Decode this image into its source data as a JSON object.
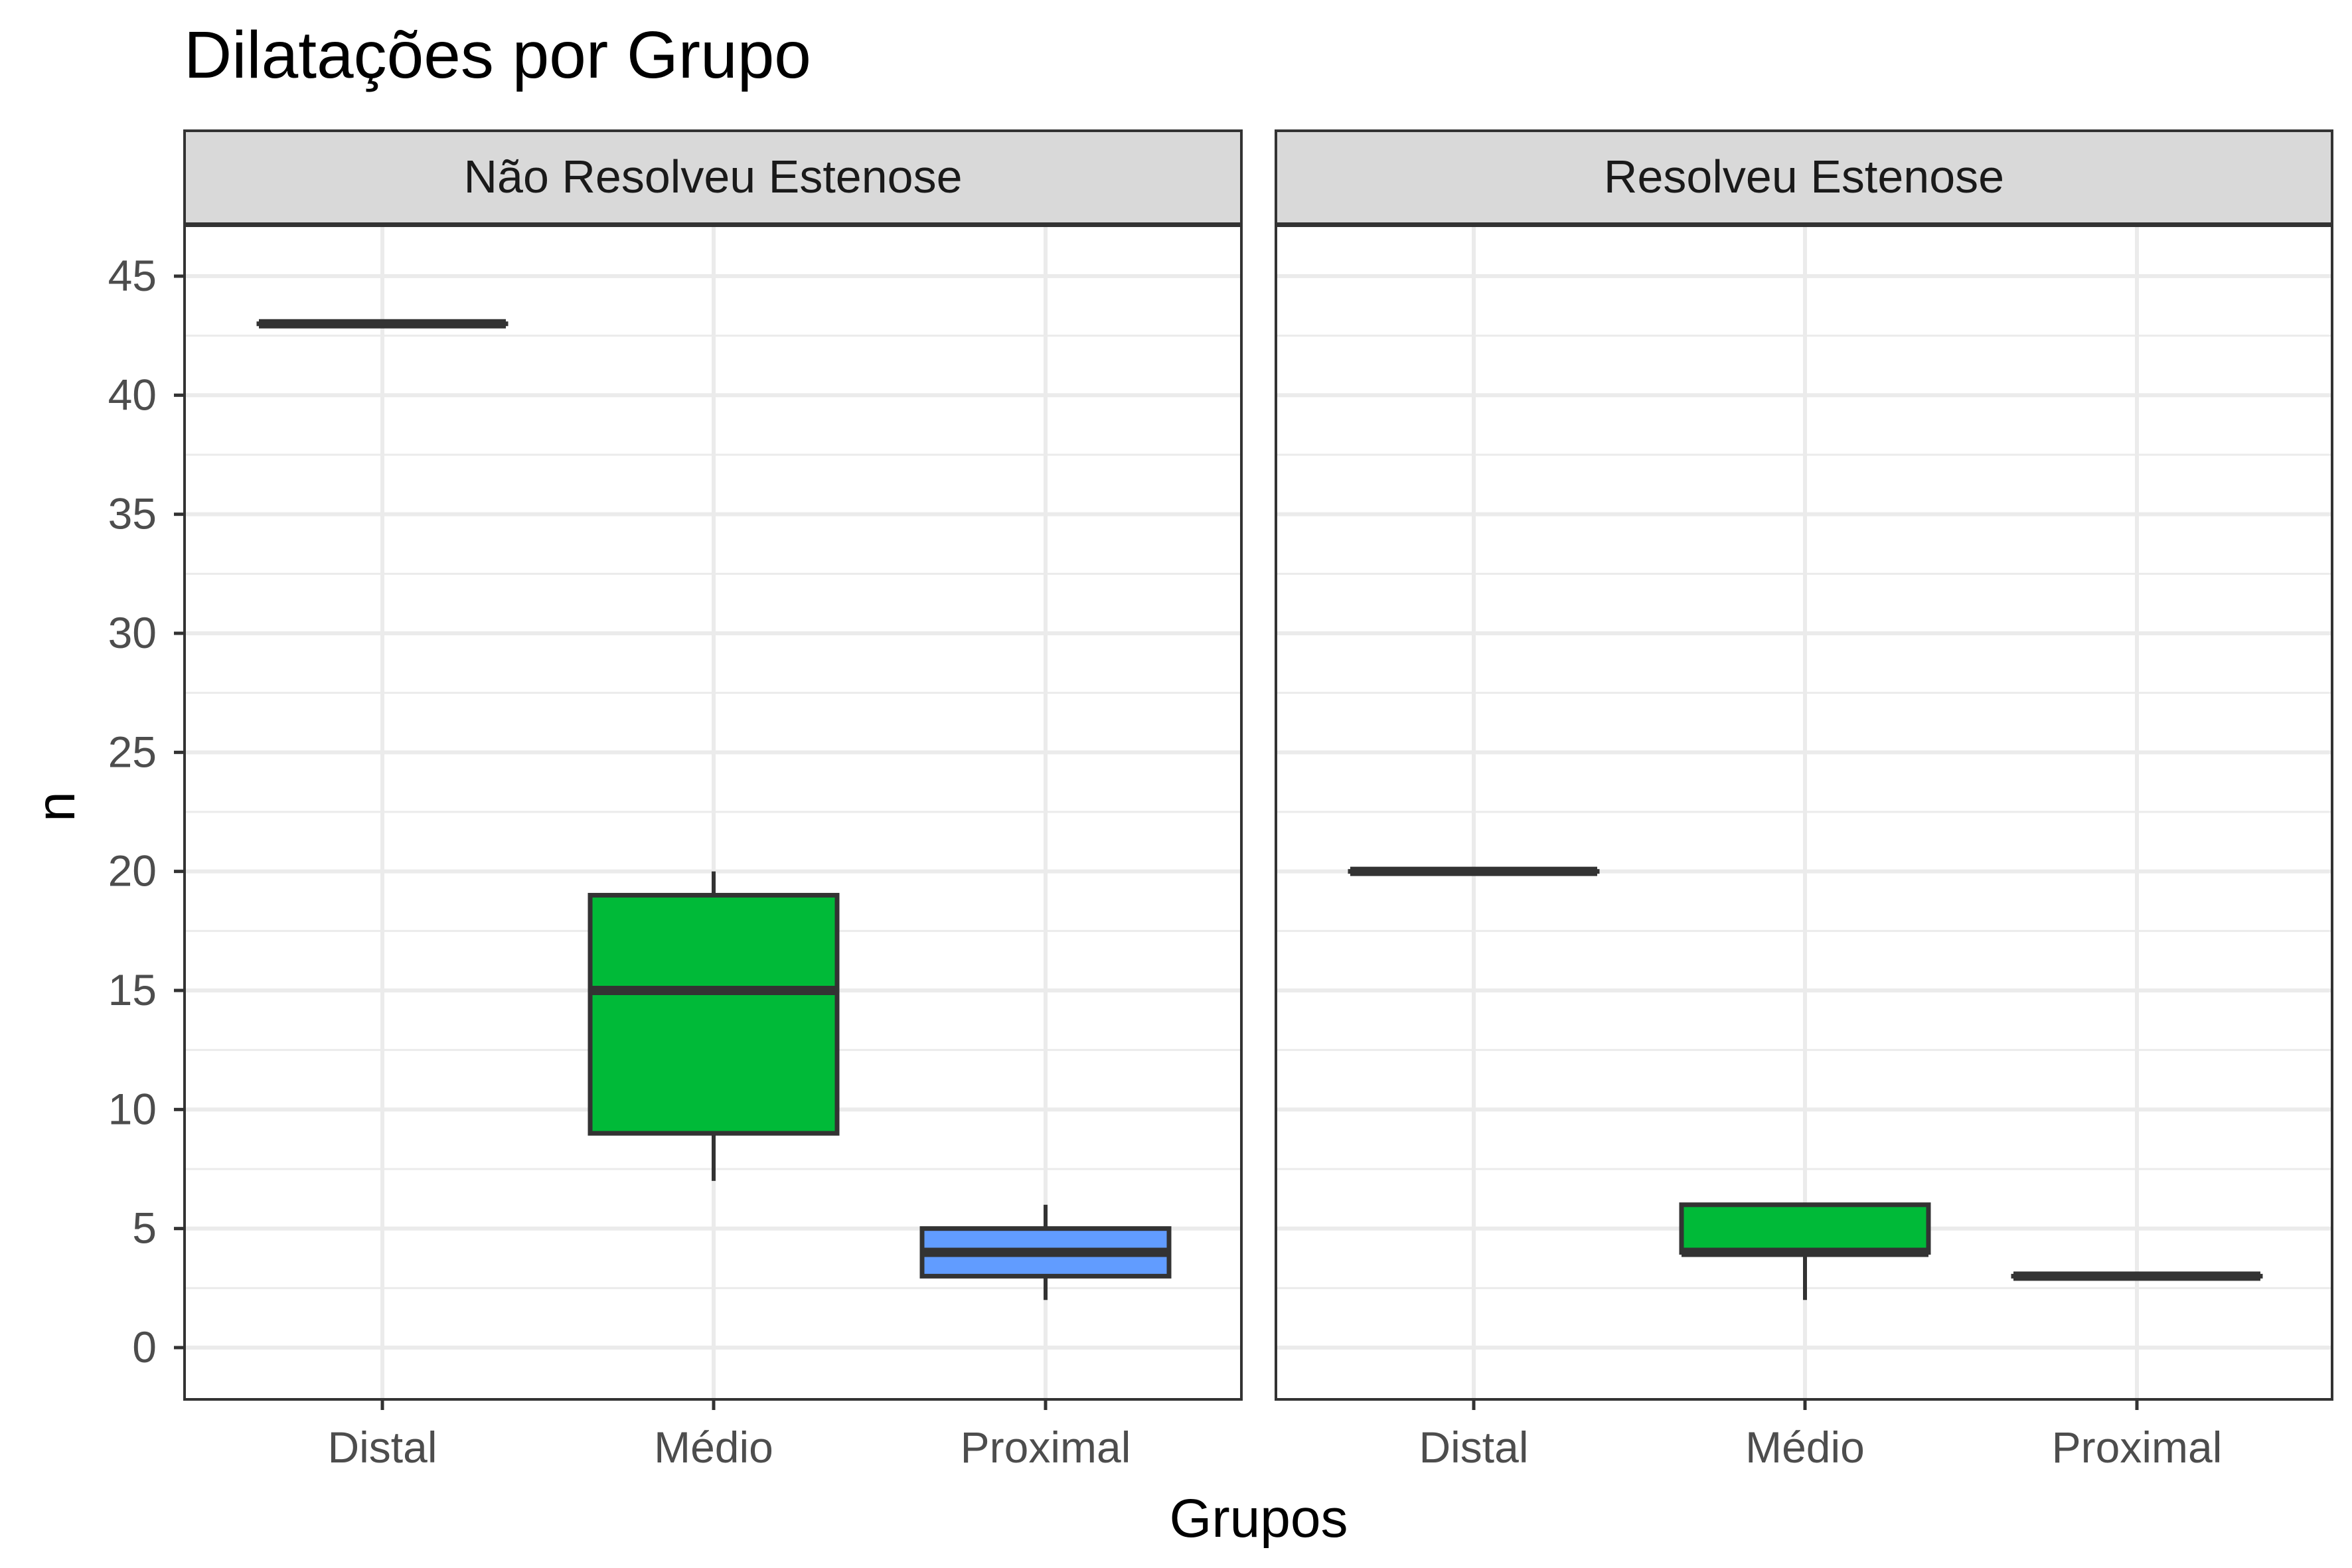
{
  "chart_data": {
    "type": "boxplot",
    "title": "Dilatações por Grupo",
    "xlabel": "Grupos",
    "ylabel": "n",
    "ylim": [
      -2.2,
      47.2
    ],
    "yticks": [
      0,
      5,
      10,
      15,
      20,
      25,
      30,
      35,
      40,
      45
    ],
    "categories": [
      "Distal",
      "Médio",
      "Proximal"
    ],
    "grid": true,
    "legend": "none",
    "colors": {
      "Distal": "#F8766D",
      "Médio": "#00BA38",
      "Proximal": "#619CFF",
      "outline": "#333333",
      "strip": "#D9D9D9",
      "grid": "#EBEBEB"
    },
    "facets": [
      {
        "label": "Não Resolveu Estenose",
        "boxes": [
          {
            "category": "Distal",
            "min": 43,
            "q1": 43,
            "median": 43,
            "q3": 43,
            "max": 43
          },
          {
            "category": "Médio",
            "min": 7,
            "q1": 9,
            "median": 15,
            "q3": 19,
            "max": 20
          },
          {
            "category": "Proximal",
            "min": 2,
            "q1": 3,
            "median": 4,
            "q3": 5,
            "max": 6
          }
        ]
      },
      {
        "label": "Resolveu Estenose",
        "boxes": [
          {
            "category": "Distal",
            "min": 20,
            "q1": 20,
            "median": 20,
            "q3": 20,
            "max": 20
          },
          {
            "category": "Médio",
            "min": 2,
            "q1": 4,
            "median": 4,
            "q3": 6,
            "max": 6
          },
          {
            "category": "Proximal",
            "min": 3,
            "q1": 3,
            "median": 3,
            "q3": 3,
            "max": 3
          }
        ]
      }
    ]
  }
}
